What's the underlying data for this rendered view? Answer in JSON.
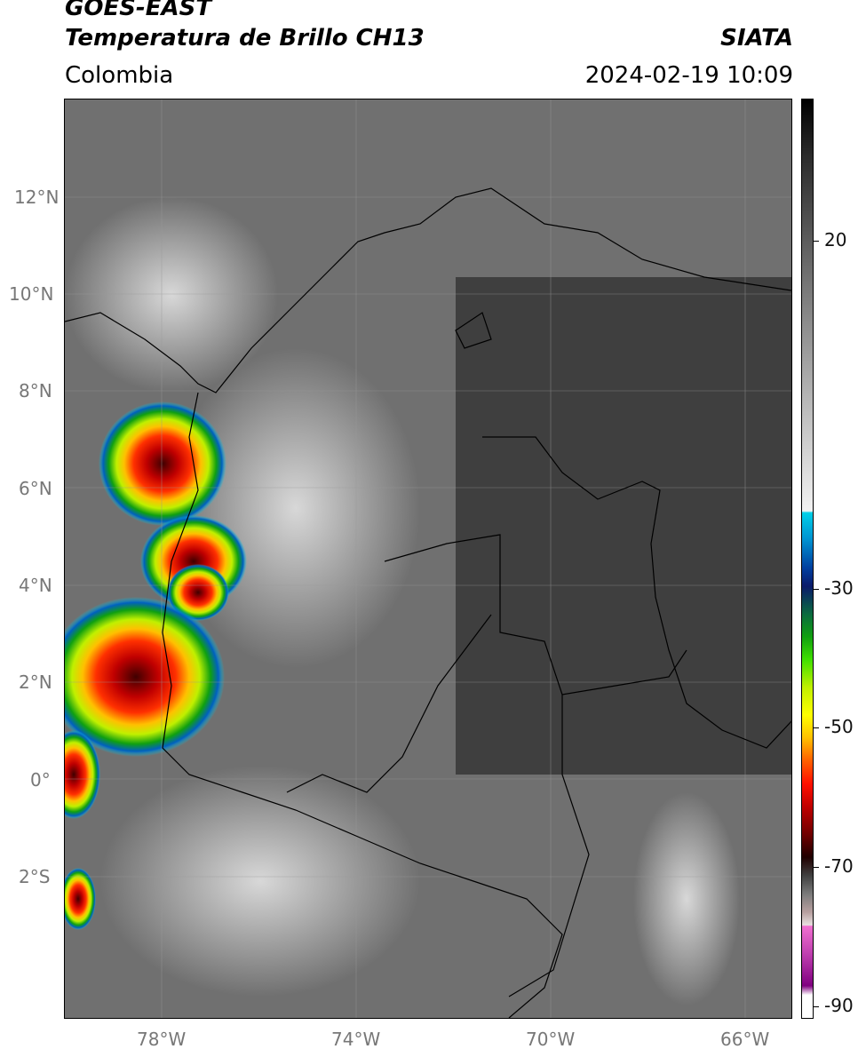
{
  "header": {
    "satellite": "GOES-EAST",
    "product": "Temperatura de Brillo CH13",
    "brand": "SIATA",
    "region": "Colombia",
    "timestamp": "2024-02-19 10:09"
  },
  "map": {
    "lat_labels": [
      "12°N",
      "10°N",
      "8°N",
      "6°N",
      "4°N",
      "2°N",
      "0°",
      "2°S"
    ],
    "lon_labels": [
      "78°W",
      "74°W",
      "70°W",
      "66°W"
    ],
    "lon_range": [
      -80,
      -65
    ],
    "lat_range": [
      -4.9,
      14
    ]
  },
  "colorbar": {
    "tick_labels": [
      "20",
      "-30",
      "-50",
      "-70",
      "-90"
    ],
    "colors": {
      "cold_top": "#ff1000",
      "mid": "#40e000",
      "warm_cyan": "#00d0e8",
      "coldest_magenta": "#c040b0"
    }
  }
}
